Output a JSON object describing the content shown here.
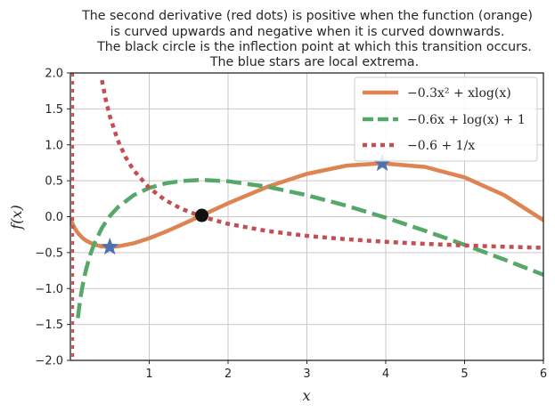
{
  "chart_data": {
    "type": "line",
    "title_lines": [
      "The second derivative (red dots) is positive when the function (orange)",
      "is curved upwards and negative when it is curved downwards.",
      "The black circle is the inflection point at which this transition occurs.",
      "The blue stars are local extrema."
    ],
    "xlabel": "x",
    "ylabel": "f(x)",
    "xlim": [
      0,
      6
    ],
    "ylim": [
      -2,
      2
    ],
    "xticks": [
      "1",
      "2",
      "3",
      "4",
      "5",
      "6"
    ],
    "yticks": [
      "−2.0",
      "−1.5",
      "−1.0",
      "−0.5",
      "0.0",
      "0.5",
      "1.0",
      "1.5",
      "2.0"
    ],
    "grid": true,
    "legend_position": "top-right",
    "series": [
      {
        "name": "−0.3x² + xlog(x)",
        "style": "solid",
        "color": "#dd8452",
        "x": [
          0.01,
          0.03,
          0.06,
          0.1,
          0.15,
          0.2,
          0.3,
          0.4,
          0.5,
          0.6,
          0.8,
          1.0,
          1.2,
          1.4,
          1.667,
          2.0,
          2.5,
          3.0,
          3.5,
          3.956,
          4.5,
          5.0,
          5.5,
          6.0
        ],
        "y": [
          -0.046,
          -0.105,
          -0.17,
          -0.233,
          -0.291,
          -0.334,
          -0.388,
          -0.414,
          -0.422,
          -0.414,
          -0.371,
          -0.3,
          -0.213,
          -0.117,
          0.018,
          0.186,
          0.416,
          0.596,
          0.71,
          0.743,
          0.692,
          0.547,
          0.301,
          -0.049
        ]
      },
      {
        "name": "−0.6x + log(x) + 1",
        "style": "dashed",
        "color": "#55a868",
        "x": [
          0.095,
          0.11,
          0.13,
          0.16,
          0.2,
          0.25,
          0.3,
          0.4,
          0.5,
          0.6,
          0.8,
          1.0,
          1.2,
          1.4,
          1.667,
          2.0,
          2.5,
          3.0,
          3.5,
          4.0,
          4.5,
          5.0,
          5.5,
          6.0
        ],
        "y": [
          -1.411,
          -1.273,
          -1.118,
          -0.929,
          -0.729,
          -0.536,
          -0.384,
          -0.156,
          0.007,
          0.129,
          0.297,
          0.4,
          0.462,
          0.496,
          0.511,
          0.493,
          0.416,
          0.299,
          0.153,
          -0.014,
          -0.196,
          -0.391,
          -0.595,
          -0.808
        ]
      },
      {
        "name": "−0.6 + 1/x",
        "style": "dotted",
        "color": "#c44e52",
        "x": [
          0.4,
          0.45,
          0.5,
          0.6,
          0.7,
          0.8,
          1.0,
          1.2,
          1.4,
          1.667,
          2.0,
          2.5,
          3.0,
          3.5,
          4.0,
          4.5,
          5.0,
          5.5,
          6.0
        ],
        "y": [
          1.9,
          1.622,
          1.4,
          1.067,
          0.829,
          0.65,
          0.4,
          0.233,
          0.114,
          0.0,
          -0.1,
          -0.2,
          -0.267,
          -0.314,
          -0.35,
          -0.378,
          -0.4,
          -0.418,
          -0.433
        ]
      }
    ],
    "inflection_point": {
      "x": 1.667,
      "y": 0.018
    },
    "extrema": [
      {
        "x": 0.5,
        "y": -0.422
      },
      {
        "x": 3.956,
        "y": 0.743
      }
    ]
  }
}
